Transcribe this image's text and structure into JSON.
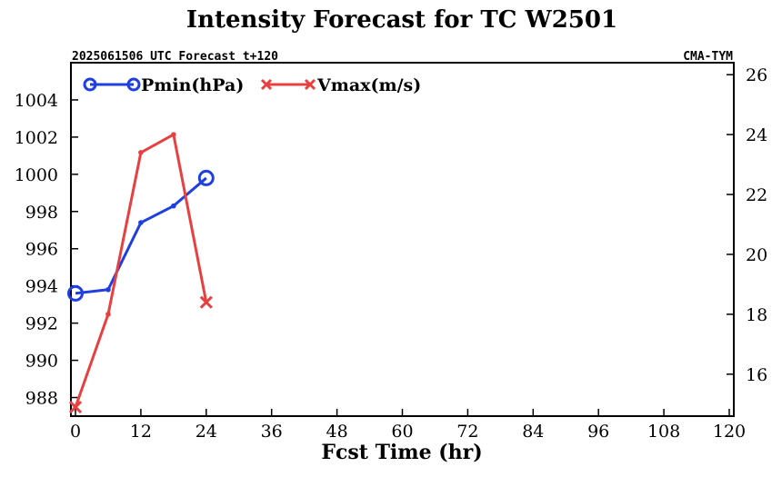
{
  "chart_data": {
    "type": "line",
    "title": "Intensity Forecast for TC W2501",
    "subtitle_left": "2025061506 UTC Forecast t+120",
    "subtitle_right": "CMA-TYM",
    "xlabel": "Fcst Time (hr)",
    "x_ticks": [
      0,
      12,
      24,
      36,
      48,
      60,
      72,
      84,
      96,
      108,
      120
    ],
    "xlim": [
      0,
      120
    ],
    "ylim_left": [
      987,
      1006
    ],
    "y_ticks_left": [
      988,
      990,
      992,
      994,
      996,
      998,
      1000,
      1002,
      1004
    ],
    "ylim_right": [
      14.6,
      26.4
    ],
    "y_ticks_right": [
      16,
      18,
      20,
      22,
      24,
      26
    ],
    "grid": false,
    "legend": "top-left",
    "series": [
      {
        "name": "Pmin(hPa)",
        "axis": "left",
        "color": "#1f3fe0",
        "marker": "circle",
        "x": [
          0,
          6,
          12,
          18,
          24
        ],
        "values": [
          993.6,
          993.8,
          997.4,
          998.3,
          999.8
        ]
      },
      {
        "name": "Vmax(m/s)",
        "axis": "right",
        "color": "#e84040",
        "marker": "cross",
        "x": [
          0,
          6,
          12,
          18,
          24
        ],
        "values": [
          14.9,
          18.0,
          23.4,
          24.0,
          18.4
        ]
      }
    ]
  }
}
